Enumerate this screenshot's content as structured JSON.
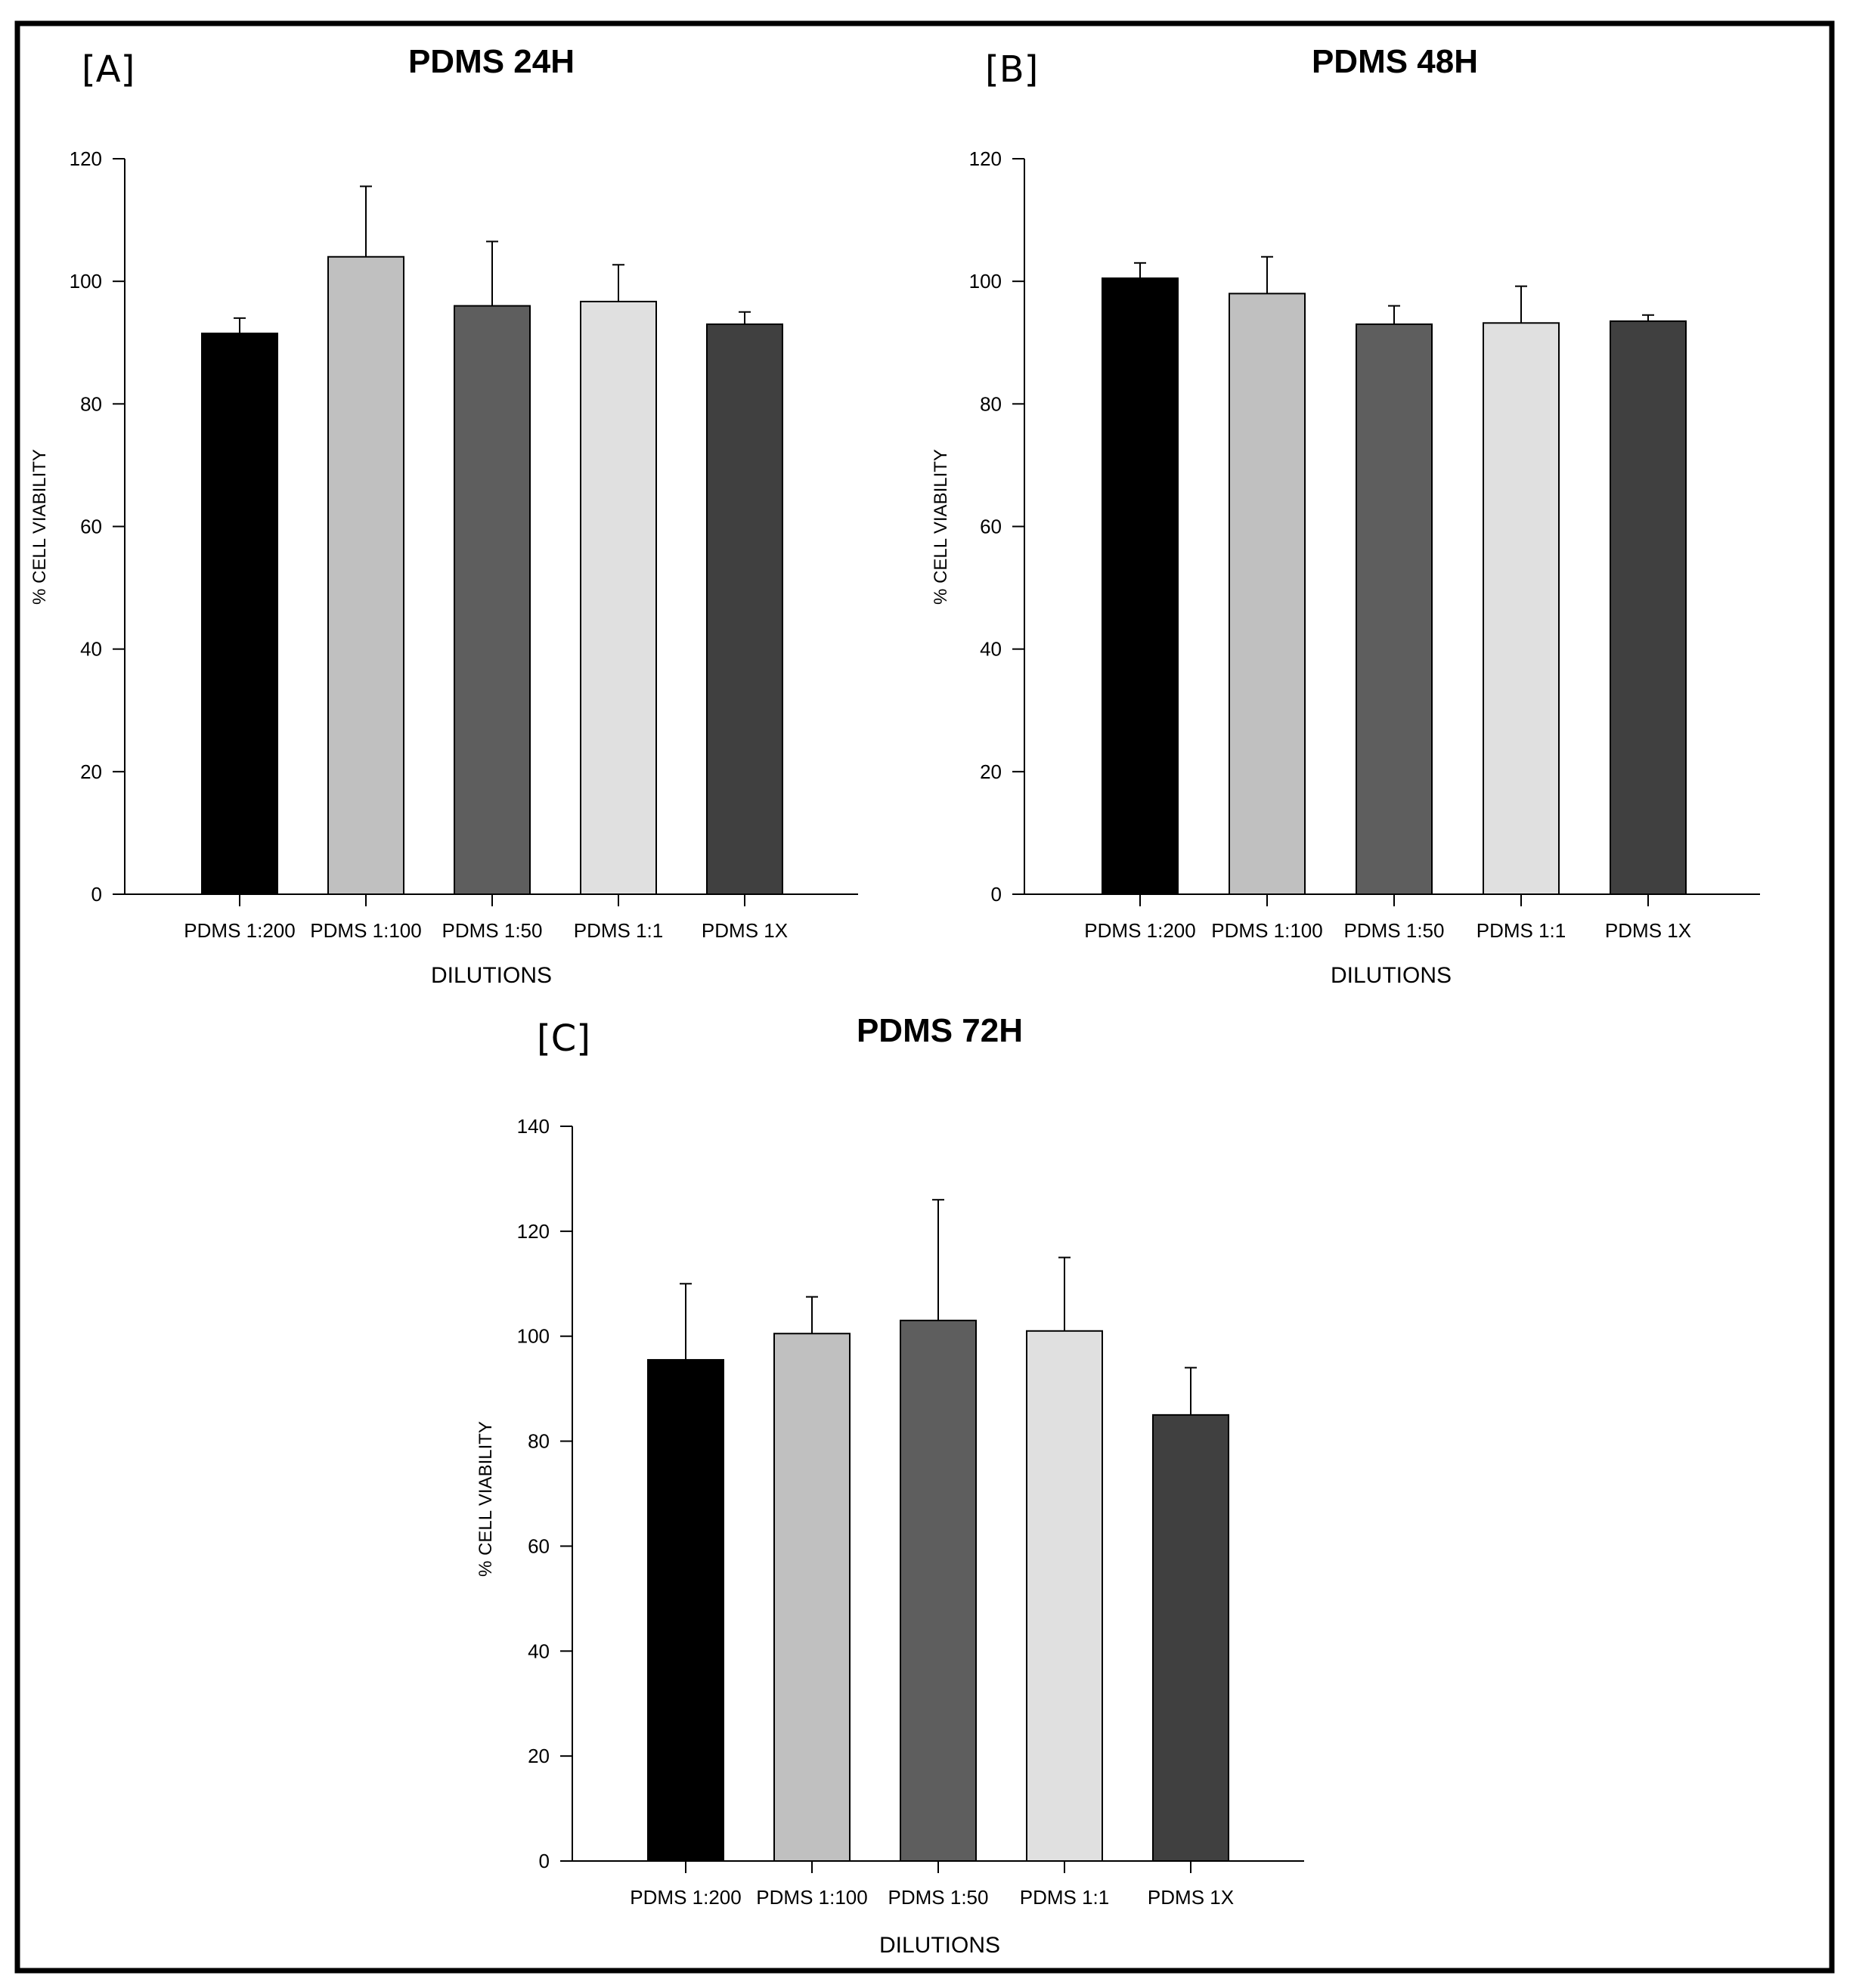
{
  "colors": {
    "background": "#ffffff",
    "frame": "#000000",
    "axis": "#000000",
    "bar_outline": "#000000",
    "bar_fills": [
      "#000000",
      "#c0c0c0",
      "#5e5e5e",
      "#e0e0e0",
      "#404040"
    ]
  },
  "chart_data": [
    {
      "type": "bar",
      "panel_label": "[A]",
      "title": "PDMS 24H",
      "xlabel": "DILUTIONS",
      "ylabel": "% CELL VIABILITY",
      "categories": [
        "PDMS 1:200",
        "PDMS 1:100",
        "PDMS 1:50",
        "PDMS 1:1",
        "PDMS 1X"
      ],
      "values": [
        91.5,
        104,
        96,
        96.7,
        93
      ],
      "error_upper": [
        2.5,
        11.5,
        10.5,
        6,
        2
      ],
      "ylim": [
        0,
        120
      ],
      "yticks": [
        0,
        20,
        40,
        60,
        80,
        100,
        120
      ],
      "ytick_labels": [
        "0",
        "20",
        "40",
        "60",
        "80",
        "100",
        "120"
      ],
      "grid": false
    },
    {
      "type": "bar",
      "panel_label": "[B]",
      "title": "PDMS 48H",
      "xlabel": "DILUTIONS",
      "ylabel": "% CELL VIABILITY",
      "categories": [
        "PDMS 1:200",
        "PDMS 1:100",
        "PDMS 1:50",
        "PDMS 1:1",
        "PDMS 1X"
      ],
      "values": [
        100.5,
        98,
        93,
        93.2,
        93.5
      ],
      "error_upper": [
        2.5,
        6,
        3,
        6,
        1
      ],
      "ylim": [
        0,
        120
      ],
      "yticks": [
        0,
        20,
        40,
        60,
        80,
        100,
        120
      ],
      "ytick_labels": [
        "0",
        "20",
        "40",
        "60",
        "80",
        "100",
        "120"
      ],
      "grid": false
    },
    {
      "type": "bar",
      "panel_label": "[C]",
      "title": "PDMS 72H",
      "xlabel": "DILUTIONS",
      "ylabel": "% CELL VIABILITY",
      "categories": [
        "PDMS 1:200",
        "PDMS 1:100",
        "PDMS 1:50",
        "PDMS 1:1",
        "PDMS 1X"
      ],
      "values": [
        95.5,
        100.5,
        103,
        101,
        85
      ],
      "error_upper": [
        14.5,
        7,
        23,
        14,
        9
      ],
      "ylim": [
        0,
        140
      ],
      "yticks": [
        0,
        20,
        40,
        60,
        80,
        100,
        120,
        140
      ],
      "ytick_labels": [
        "0",
        "20",
        "40",
        "60",
        "80",
        "100",
        "120",
        "140"
      ],
      "grid": false
    }
  ]
}
